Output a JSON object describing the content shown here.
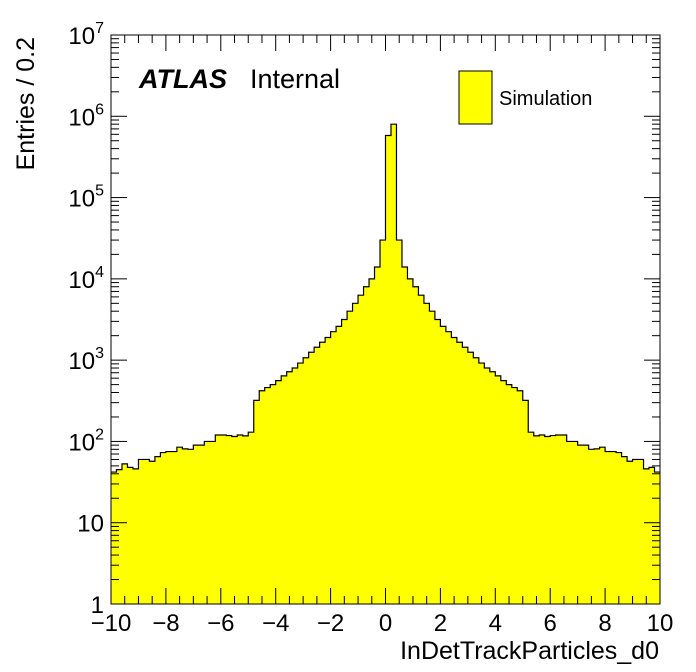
{
  "chart_data": {
    "type": "bar",
    "subtype": "histogram",
    "experiment_label": "ATLAS",
    "status_label": "Internal",
    "xlabel": "InDetTrackParticles_d0",
    "ylabel": "Entries / 0.2",
    "xlim": [
      -10,
      10
    ],
    "ylim": [
      1,
      10000000
    ],
    "yscale": "log",
    "bin_width": 0.2,
    "x_tick_labels": [
      "−10",
      "−8",
      "−6",
      "−4",
      "−2",
      "0",
      "2",
      "4",
      "6",
      "8",
      "10"
    ],
    "x_tick_values": [
      -10,
      -8,
      -6,
      -4,
      -2,
      0,
      2,
      4,
      6,
      8,
      10
    ],
    "y_tick_values": [
      1,
      10,
      100,
      1000,
      10000,
      100000,
      1000000,
      10000000
    ],
    "y_tick_labels": [
      {
        "base": "1",
        "exp": ""
      },
      {
        "base": "10",
        "exp": ""
      },
      {
        "base": "10",
        "exp": "2"
      },
      {
        "base": "10",
        "exp": "3"
      },
      {
        "base": "10",
        "exp": "4"
      },
      {
        "base": "10",
        "exp": "5"
      },
      {
        "base": "10",
        "exp": "6"
      },
      {
        "base": "10",
        "exp": "7"
      }
    ],
    "legend": {
      "placement": "top-right",
      "entries": [
        {
          "name": "Simulation",
          "color": "#ffff00"
        }
      ]
    },
    "series": [
      {
        "name": "Simulation",
        "fill_color": "#ffff00",
        "line_color": "#000000",
        "bin_low_edges_start": -10,
        "values": [
          42,
          45,
          53,
          48,
          46,
          60,
          60,
          57,
          65,
          73,
          75,
          75,
          85,
          81,
          80,
          90,
          90,
          100,
          100,
          120,
          120,
          118,
          115,
          120,
          117,
          130,
          320,
          420,
          460,
          500,
          560,
          640,
          720,
          800,
          920,
          1070,
          1250,
          1440,
          1660,
          1900,
          2240,
          2600,
          3160,
          4000,
          5000,
          6300,
          8000,
          10000,
          14000,
          30000,
          580000,
          800000,
          30000,
          14000,
          10000,
          8000,
          6300,
          5000,
          4000,
          3160,
          2600,
          2240,
          1900,
          1660,
          1440,
          1250,
          1070,
          920,
          800,
          720,
          640,
          560,
          500,
          460,
          420,
          320,
          130,
          117,
          120,
          115,
          118,
          120,
          120,
          100,
          100,
          90,
          90,
          80,
          81,
          85,
          75,
          75,
          73,
          65,
          57,
          60,
          60,
          46,
          48,
          42
        ]
      }
    ]
  }
}
